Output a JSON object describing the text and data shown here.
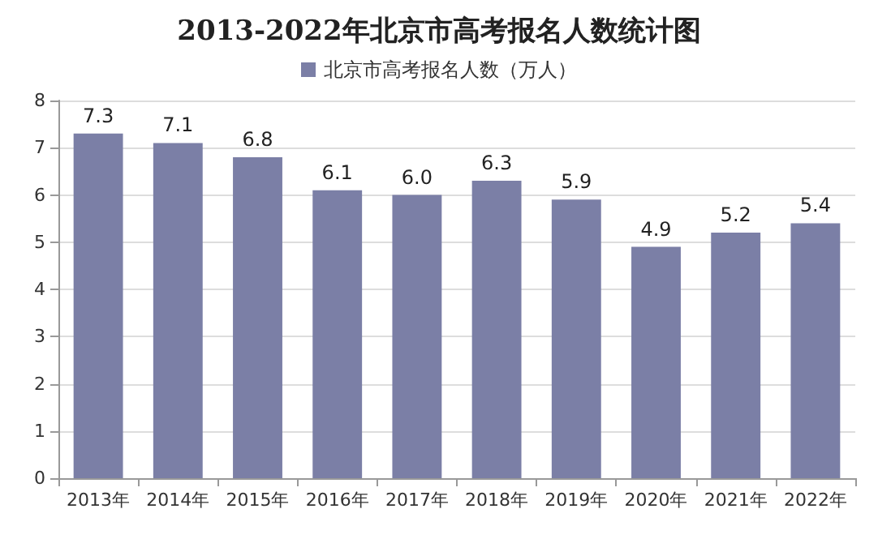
{
  "chart_data": {
    "type": "bar",
    "title": "2013-2022年北京市高考报名人数统计图",
    "categories": [
      "2013年",
      "2014年",
      "2015年",
      "2016年",
      "2017年",
      "2018年",
      "2019年",
      "2020年",
      "2021年",
      "2022年"
    ],
    "series": [
      {
        "name": "北京市高考报名人数（万人）",
        "color": "#7b7fa6",
        "values": [
          7.3,
          7.1,
          6.8,
          6.1,
          6.0,
          6.3,
          5.9,
          4.9,
          5.2,
          5.4
        ],
        "value_labels": [
          "7.3",
          "7.1",
          "6.8",
          "6.1",
          "6.0",
          "6.3",
          "5.9",
          "4.9",
          "5.2",
          "5.4"
        ]
      }
    ],
    "ylim": [
      0,
      8
    ],
    "yticks": [
      0,
      1,
      2,
      3,
      4,
      5,
      6,
      7,
      8
    ],
    "grid": "y",
    "legend": "top"
  }
}
